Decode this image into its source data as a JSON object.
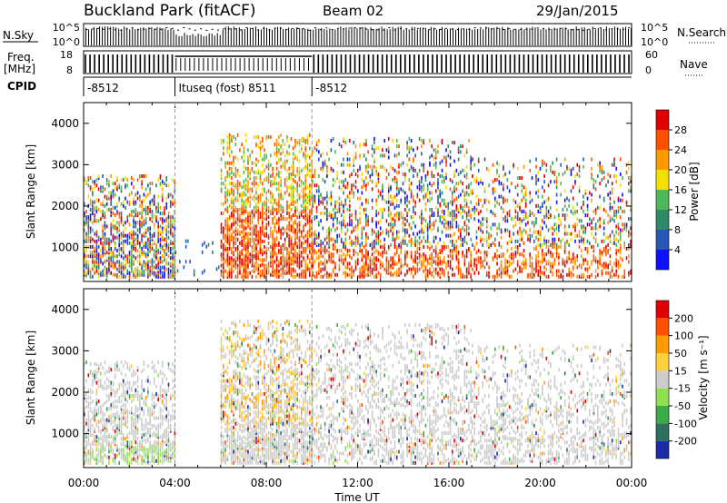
{
  "header": {
    "station": "Buckland Park (fitACF)",
    "beam": "Beam 02",
    "date": "29/Jan/2015"
  },
  "top_panels": {
    "nsky_label": "N.Sky",
    "nsky_ticks": [
      "10^5",
      "10^0"
    ],
    "nsearch_label": "N.Search",
    "nsearch_ticks": [
      "10^5",
      "10^0"
    ],
    "freq_label": "Freq.",
    "freq_unit": "[MHz]",
    "freq_ticks": [
      "18",
      "8"
    ],
    "nave_label": "Nave",
    "nave_ticks": [
      "60",
      "0"
    ],
    "cpid_label": "CPID",
    "cpid_segments": [
      {
        "label": "-8512",
        "start_ut": 0,
        "end_ut": 4
      },
      {
        "label": "Ituseq (fost) 8511",
        "start_ut": 4,
        "end_ut": 10
      },
      {
        "label": "-8512",
        "start_ut": 10,
        "end_ut": 24
      }
    ]
  },
  "chart_data": [
    {
      "type": "heatmap",
      "quantity": "Power",
      "ylabel": "Slant Range [km]",
      "xlim": [
        0,
        24
      ],
      "ylim": [
        180,
        4500
      ],
      "y_ticks": [
        "1000",
        "2000",
        "3000",
        "4000"
      ],
      "colorbar": {
        "label": "Power [dB]",
        "tick_labels": [
          "4",
          "8",
          "12",
          "16",
          "20",
          "24",
          "28"
        ],
        "colors": [
          "#1010ff",
          "#2a55b8",
          "#2e8a66",
          "#4fb85a",
          "#f2e000",
          "#ff9900",
          "#ff5000",
          "#e00000"
        ]
      },
      "regions": [
        {
          "start_ut": 0,
          "end_ut": 4,
          "range_km": [
            250,
            2700
          ],
          "dominant": "green-yellow-red"
        },
        {
          "start_ut": 4,
          "end_ut": 6,
          "range_km": [
            300,
            1200
          ],
          "dominant": "blue"
        },
        {
          "start_ut": 6,
          "end_ut": 10,
          "range_km": [
            250,
            3700
          ],
          "dominant": "red-orange"
        },
        {
          "start_ut": 10,
          "end_ut": 17,
          "range_km": [
            250,
            3600
          ],
          "dominant": "mixed"
        },
        {
          "start_ut": 17,
          "end_ut": 24,
          "range_km": [
            250,
            3100
          ],
          "dominant": "blue-red"
        }
      ]
    },
    {
      "type": "heatmap",
      "quantity": "Velocity",
      "xlabel": "Time UT",
      "ylabel": "Slant Range [km]",
      "xlim": [
        0,
        24
      ],
      "ylim": [
        180,
        4500
      ],
      "x_ticks": [
        "00:00",
        "04:00",
        "08:00",
        "12:00",
        "16:00",
        "20:00",
        "00:00"
      ],
      "y_ticks": [
        "1000",
        "2000",
        "3000",
        "4000"
      ],
      "colorbar": {
        "label": "Velocity [m s⁻¹]",
        "tick_labels": [
          "200",
          "100",
          "50",
          "15",
          "-15",
          "-50",
          "-100",
          "-200"
        ],
        "colors": [
          "#1a2aa8",
          "#2e7060",
          "#3caa46",
          "#8ee050",
          "#cccccc",
          "#ffd040",
          "#ff9a00",
          "#ff5000",
          "#e00000"
        ]
      },
      "regions": [
        {
          "start_ut": 0,
          "end_ut": 4,
          "range_km": [
            250,
            2700
          ],
          "dominant": "grey"
        },
        {
          "start_ut": 6,
          "end_ut": 10,
          "range_km": [
            250,
            3700
          ],
          "dominant": "grey-orange"
        },
        {
          "start_ut": 10,
          "end_ut": 17,
          "range_km": [
            250,
            3600
          ],
          "dominant": "grey"
        },
        {
          "start_ut": 17,
          "end_ut": 24,
          "range_km": [
            250,
            3100
          ],
          "dominant": "grey-orange"
        }
      ]
    }
  ]
}
